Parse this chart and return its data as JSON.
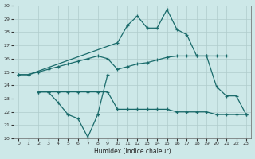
{
  "bg_color": "#cde8e8",
  "grid_color": "#b0cccc",
  "line_color": "#1a6b6b",
  "xlabel": "Humidex (Indice chaleur)",
  "xlim": [
    -0.5,
    23.5
  ],
  "ylim": [
    20,
    30
  ],
  "xticks": [
    0,
    1,
    2,
    3,
    4,
    5,
    6,
    7,
    8,
    9,
    10,
    11,
    12,
    13,
    14,
    15,
    16,
    17,
    18,
    19,
    20,
    21,
    22,
    23
  ],
  "yticks": [
    20,
    21,
    22,
    23,
    24,
    25,
    26,
    27,
    28,
    29,
    30
  ],
  "series": [
    {
      "x": [
        0,
        1,
        10,
        11,
        12,
        13,
        14,
        15,
        16,
        17,
        18,
        19,
        20,
        21,
        22,
        23
      ],
      "y": [
        24.8,
        24.8,
        27.2,
        28.5,
        29.2,
        28.3,
        28.3,
        29.7,
        28.2,
        27.8,
        26.2,
        26.2,
        23.9,
        23.2,
        23.2,
        21.8
      ]
    },
    {
      "x": [
        0,
        1,
        2,
        3,
        4,
        5,
        6,
        7,
        8,
        9,
        10,
        11,
        12,
        13,
        14,
        15,
        16,
        17,
        18,
        19,
        20,
        21
      ],
      "y": [
        24.8,
        24.8,
        25.0,
        25.2,
        25.4,
        25.6,
        25.8,
        26.0,
        26.2,
        26.0,
        25.2,
        25.4,
        25.6,
        25.7,
        25.9,
        26.1,
        26.2,
        26.2,
        26.2,
        26.2,
        26.2,
        26.2
      ]
    },
    {
      "x": [
        2,
        3,
        4,
        5,
        6,
        7,
        8,
        9,
        10,
        11,
        12,
        13,
        14,
        15,
        16,
        17,
        18,
        19,
        20,
        21,
        22,
        23
      ],
      "y": [
        23.5,
        23.5,
        23.5,
        23.5,
        23.5,
        23.5,
        23.5,
        23.5,
        22.2,
        22.2,
        22.2,
        22.2,
        22.2,
        22.2,
        22.0,
        22.0,
        22.0,
        22.0,
        21.8,
        21.8,
        21.8,
        21.8
      ]
    },
    {
      "x": [
        2,
        3,
        4,
        5,
        6,
        7,
        8,
        9
      ],
      "y": [
        23.5,
        23.5,
        22.7,
        21.8,
        21.5,
        20.1,
        21.8,
        24.8
      ]
    }
  ]
}
